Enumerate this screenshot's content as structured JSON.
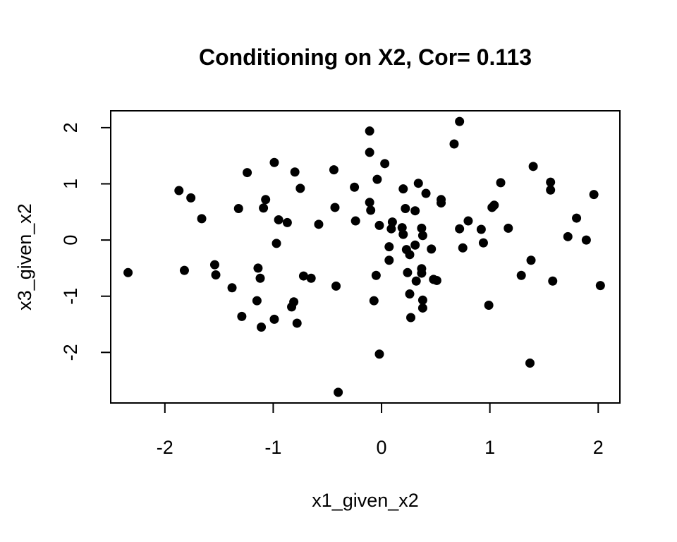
{
  "chart_data": {
    "type": "scatter",
    "title": "Conditioning on X2, Cor= 0.113",
    "xlabel": "x1_given_x2",
    "ylabel": "x3_given_x2",
    "xlim": [
      -2.5,
      2.2
    ],
    "ylim": [
      -2.9,
      2.3
    ],
    "xticks": [
      -2,
      -1,
      0,
      1,
      2
    ],
    "yticks": [
      -2,
      -1,
      0,
      1,
      2
    ],
    "xtick_labels": [
      "-2",
      "-1",
      "0",
      "1",
      "2"
    ],
    "ytick_labels": [
      "-2",
      "-1",
      "0",
      "1",
      "2"
    ],
    "point_color": "#000000",
    "grid": false,
    "legend": "none",
    "points": [
      {
        "x": -2.34,
        "y": -0.58
      },
      {
        "x": -1.87,
        "y": 0.88
      },
      {
        "x": -1.82,
        "y": -0.54
      },
      {
        "x": -1.76,
        "y": 0.75
      },
      {
        "x": -1.66,
        "y": 0.38
      },
      {
        "x": -1.54,
        "y": -0.44
      },
      {
        "x": -1.53,
        "y": -0.62
      },
      {
        "x": -1.38,
        "y": -0.85
      },
      {
        "x": -1.32,
        "y": 0.56
      },
      {
        "x": -1.29,
        "y": -1.36
      },
      {
        "x": -1.24,
        "y": 1.2
      },
      {
        "x": -1.15,
        "y": -1.08
      },
      {
        "x": -1.14,
        "y": -0.5
      },
      {
        "x": -1.12,
        "y": -0.68
      },
      {
        "x": -1.11,
        "y": -1.55
      },
      {
        "x": -1.09,
        "y": 0.57
      },
      {
        "x": -1.07,
        "y": 0.72
      },
      {
        "x": -0.99,
        "y": 1.38
      },
      {
        "x": -0.99,
        "y": -1.41
      },
      {
        "x": -0.97,
        "y": -0.06
      },
      {
        "x": -0.95,
        "y": 0.36
      },
      {
        "x": -0.87,
        "y": 0.31
      },
      {
        "x": -0.83,
        "y": -1.19
      },
      {
        "x": -0.81,
        "y": -1.1
      },
      {
        "x": -0.8,
        "y": 1.21
      },
      {
        "x": -0.78,
        "y": -1.48
      },
      {
        "x": -0.75,
        "y": 0.92
      },
      {
        "x": -0.72,
        "y": -0.64
      },
      {
        "x": -0.65,
        "y": -0.68
      },
      {
        "x": -0.58,
        "y": 0.28
      },
      {
        "x": -0.44,
        "y": 1.25
      },
      {
        "x": -0.43,
        "y": 0.58
      },
      {
        "x": -0.42,
        "y": -0.82
      },
      {
        "x": -0.4,
        "y": -2.71
      },
      {
        "x": -0.25,
        "y": 0.94
      },
      {
        "x": -0.24,
        "y": 0.34
      },
      {
        "x": -0.11,
        "y": 1.94
      },
      {
        "x": -0.11,
        "y": 1.56
      },
      {
        "x": -0.11,
        "y": 0.67
      },
      {
        "x": -0.1,
        "y": 0.53
      },
      {
        "x": -0.07,
        "y": -1.08
      },
      {
        "x": -0.05,
        "y": -0.63
      },
      {
        "x": -0.04,
        "y": 1.08
      },
      {
        "x": -0.02,
        "y": 0.26
      },
      {
        "x": -0.02,
        "y": -2.03
      },
      {
        "x": 0.03,
        "y": 1.36
      },
      {
        "x": 0.07,
        "y": -0.12
      },
      {
        "x": 0.07,
        "y": -0.36
      },
      {
        "x": 0.09,
        "y": 0.2
      },
      {
        "x": 0.1,
        "y": 0.32
      },
      {
        "x": 0.19,
        "y": 0.22
      },
      {
        "x": 0.2,
        "y": 0.1
      },
      {
        "x": 0.2,
        "y": 0.91
      },
      {
        "x": 0.22,
        "y": 0.56
      },
      {
        "x": 0.23,
        "y": -0.17
      },
      {
        "x": 0.24,
        "y": -0.58
      },
      {
        "x": 0.26,
        "y": -0.26
      },
      {
        "x": 0.26,
        "y": -0.96
      },
      {
        "x": 0.27,
        "y": -1.38
      },
      {
        "x": 0.31,
        "y": 0.52
      },
      {
        "x": 0.31,
        "y": -0.09
      },
      {
        "x": 0.32,
        "y": -0.73
      },
      {
        "x": 0.34,
        "y": 1.01
      },
      {
        "x": 0.37,
        "y": -0.51
      },
      {
        "x": 0.37,
        "y": -0.59
      },
      {
        "x": 0.37,
        "y": 0.21
      },
      {
        "x": 0.38,
        "y": 0.08
      },
      {
        "x": 0.38,
        "y": -1.07
      },
      {
        "x": 0.38,
        "y": -1.21
      },
      {
        "x": 0.41,
        "y": 0.83
      },
      {
        "x": 0.46,
        "y": -0.16
      },
      {
        "x": 0.48,
        "y": -0.7
      },
      {
        "x": 0.51,
        "y": -0.72
      },
      {
        "x": 0.55,
        "y": 0.72
      },
      {
        "x": 0.55,
        "y": 0.66
      },
      {
        "x": 0.67,
        "y": 1.71
      },
      {
        "x": 0.72,
        "y": 2.11
      },
      {
        "x": 0.72,
        "y": 0.2
      },
      {
        "x": 0.75,
        "y": -0.14
      },
      {
        "x": 0.8,
        "y": 0.34
      },
      {
        "x": 0.92,
        "y": 0.19
      },
      {
        "x": 0.94,
        "y": -0.05
      },
      {
        "x": 0.99,
        "y": -1.16
      },
      {
        "x": 1.02,
        "y": 0.58
      },
      {
        "x": 1.04,
        "y": 0.62
      },
      {
        "x": 1.1,
        "y": 1.02
      },
      {
        "x": 1.17,
        "y": 0.21
      },
      {
        "x": 1.29,
        "y": -0.63
      },
      {
        "x": 1.37,
        "y": -2.19
      },
      {
        "x": 1.38,
        "y": -0.36
      },
      {
        "x": 1.4,
        "y": 1.31
      },
      {
        "x": 1.56,
        "y": 1.03
      },
      {
        "x": 1.56,
        "y": 0.89
      },
      {
        "x": 1.58,
        "y": -0.73
      },
      {
        "x": 1.72,
        "y": 0.06
      },
      {
        "x": 1.8,
        "y": 0.39
      },
      {
        "x": 1.89,
        "y": 0.0
      },
      {
        "x": 1.96,
        "y": 0.81
      },
      {
        "x": 2.02,
        "y": -0.81
      }
    ]
  }
}
